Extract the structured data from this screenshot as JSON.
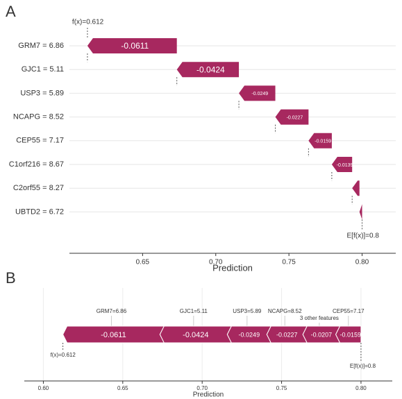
{
  "chart_data": [
    {
      "type": "waterfall",
      "panel": "A",
      "categories": [
        "GRM7 = 6.86",
        "GJC1 = 5.11",
        "USP3 = 5.89",
        "NCAPG = 8.52",
        "CEP55 = 7.17",
        "C1orf216 = 8.67",
        "C2orf55 = 8.27",
        "UBTD2 = 6.72"
      ],
      "values": [
        -0.0611,
        -0.0424,
        -0.0249,
        -0.0227,
        -0.0159,
        -0.0139,
        -0.005,
        -0.0018
      ],
      "color": "#a7285f",
      "base_value": 0.8,
      "fx_label": "f(x)=0.612",
      "base_label": "E[f(x)]=0.8",
      "xlabel": "Prediction",
      "xlim": [
        0.6,
        0.823
      ],
      "xticks": [
        0.65,
        {
          "value": 0.7,
          "label": "0.70"
        },
        0.75,
        {
          "value": 0.8,
          "label": "0.80"
        }
      ]
    },
    {
      "type": "force",
      "panel": "B",
      "categories": [
        "GRM7=6.86",
        "GJC1=5.11",
        "USP3=5.89",
        "NCAPG=8.52",
        "3 other features",
        "CEP55=7.17"
      ],
      "values": [
        -0.0611,
        -0.0424,
        -0.0249,
        -0.0227,
        -0.0207,
        -0.0159
      ],
      "color": "#a7285f",
      "base_value": 0.8,
      "fx_label": "f(x)=0.612",
      "base_label": "E[f(x)]=0.8",
      "xlabel": "Prediction",
      "xlim": [
        0.588,
        0.8197
      ],
      "xticks": [
        {
          "value": 0.6,
          "label": "0.60"
        },
        0.65,
        {
          "value": 0.7,
          "label": "0.70"
        },
        0.75,
        {
          "value": 0.8,
          "label": "0.80"
        }
      ]
    }
  ]
}
